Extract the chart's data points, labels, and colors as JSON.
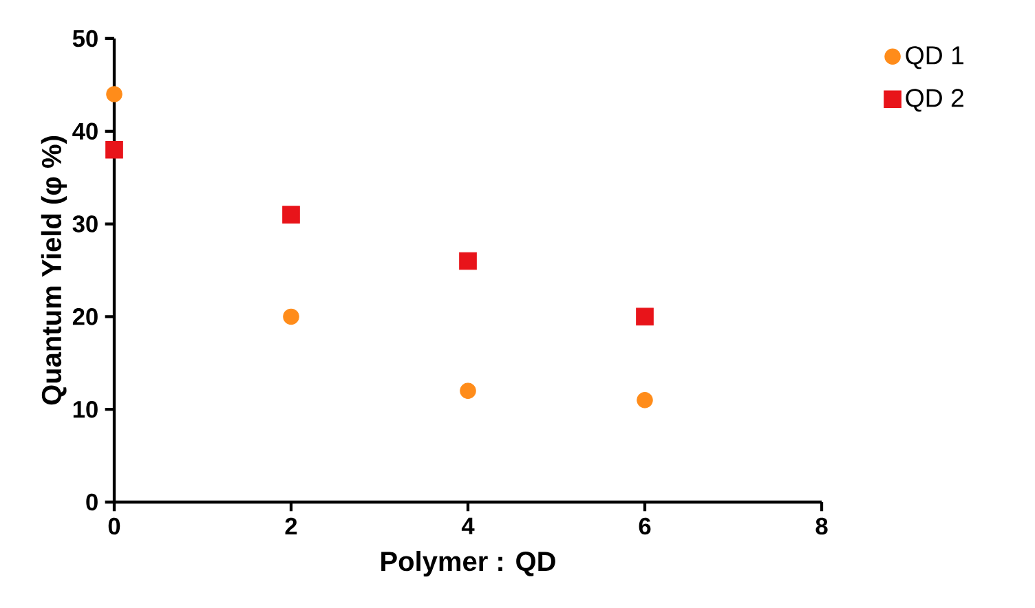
{
  "chart_data": {
    "type": "scatter",
    "xlabel": "Polymer : QD",
    "ylabel": "Quantum Yield (φ %)",
    "x": [
      0,
      2,
      4,
      6
    ],
    "series": [
      {
        "name": "QD 1",
        "color": "#ff8c1a",
        "marker": "circle",
        "values": [
          44,
          20,
          12,
          11
        ]
      },
      {
        "name": "QD 2",
        "color": "#e8141a",
        "marker": "square",
        "values": [
          38,
          31,
          26,
          20
        ]
      }
    ],
    "xlim": [
      0,
      8
    ],
    "xticks": [
      0,
      2,
      4,
      6,
      8
    ],
    "ylim": [
      0,
      50
    ],
    "yticks": [
      0,
      10,
      20,
      30,
      40,
      50
    ],
    "grid": false,
    "legend": "top right"
  }
}
